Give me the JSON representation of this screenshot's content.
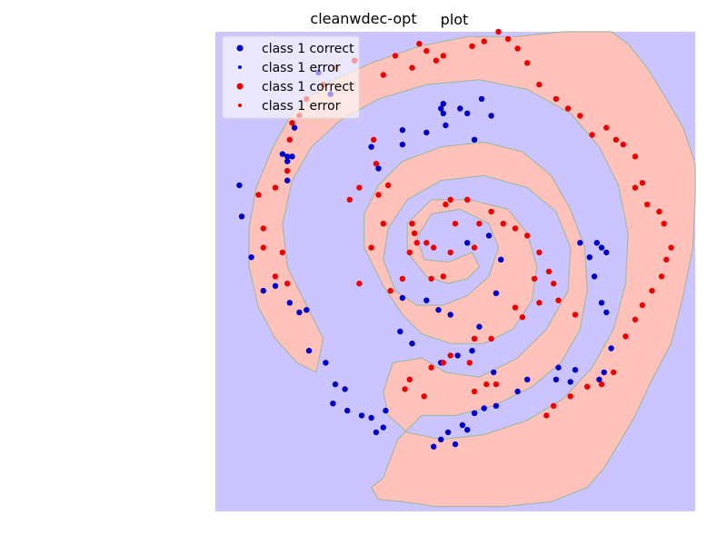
{
  "chart_data": {
    "type": "scatter",
    "title_left": "cleanwdec-opt",
    "title_right": "plot",
    "xlim": [
      -1,
      1
    ],
    "ylim": [
      -1,
      1
    ],
    "grid": false,
    "axes_visible": false,
    "legend_position": "top-left",
    "background": "decision-regions",
    "regions": {
      "class_blue_color": "#ccc4ff",
      "class_red_color": "#ffc2bb",
      "boundary_color": "#a3b8a5"
    },
    "legend": [
      {
        "label": "class 1 correct",
        "color": "#0000cc",
        "marker": "large"
      },
      {
        "label": "class 1 error",
        "color": "#0000cc",
        "marker": "small"
      },
      {
        "label": "class 1 correct",
        "color": "#ee0000",
        "marker": "large"
      },
      {
        "label": "class 1 error",
        "color": "#ee0000",
        "marker": "small"
      }
    ],
    "series": [
      {
        "color": "#0000cc",
        "points": [
          [
            0.05,
            0.12
          ],
          [
            0.14,
            0.15
          ],
          [
            0.19,
            0.05
          ],
          [
            0.17,
            -0.09
          ],
          [
            -0.02,
            -0.18
          ],
          [
            0.1,
            -0.23
          ],
          [
            -0.22,
            -0.11
          ],
          [
            -0.12,
            -0.12
          ],
          [
            -0.07,
            -0.16
          ],
          [
            -0.23,
            -0.25
          ],
          [
            -0.18,
            -0.3
          ],
          [
            0.01,
            -0.35
          ],
          [
            0.07,
            -0.33
          ],
          [
            0.08,
            -0.28
          ],
          [
            -0.06,
            -0.38
          ],
          [
            0.16,
            -0.42
          ],
          [
            0.3,
            -0.45
          ],
          [
            0.26,
            -0.5
          ],
          [
            0.17,
            -0.56
          ],
          [
            0.12,
            -0.57
          ],
          [
            0.08,
            -0.59
          ],
          [
            0.03,
            -0.64
          ],
          [
            0.05,
            -0.66
          ],
          [
            -0.03,
            -0.67
          ],
          [
            0.0,
            -0.72
          ],
          [
            -0.06,
            -0.7
          ],
          [
            -0.09,
            -0.73
          ],
          [
            -0.29,
            -0.58
          ],
          [
            -0.35,
            -0.61
          ],
          [
            -0.3,
            -0.65
          ],
          [
            -0.33,
            -0.67
          ],
          [
            -0.39,
            -0.6
          ],
          [
            -0.45,
            -0.58
          ],
          [
            -0.46,
            -0.49
          ],
          [
            -0.51,
            -0.55
          ],
          [
            -0.5,
            -0.47
          ],
          [
            -0.54,
            -0.38
          ],
          [
            -0.61,
            -0.33
          ],
          [
            -0.65,
            -0.17
          ],
          [
            -0.62,
            -0.16
          ],
          [
            -0.69,
            -0.13
          ],
          [
            -0.75,
            -0.06
          ],
          [
            -0.8,
            -0.08
          ],
          [
            -0.85,
            0.06
          ],
          [
            -0.89,
            0.23
          ],
          [
            -0.9,
            0.36
          ],
          [
            -0.7,
            0.38
          ],
          [
            -0.7,
            0.46
          ],
          [
            -0.7,
            0.48
          ],
          [
            -0.68,
            0.48
          ],
          [
            -0.72,
            0.49
          ],
          [
            -0.67,
            0.6
          ],
          [
            -0.52,
            0.74
          ],
          [
            -0.57,
            0.83
          ],
          [
            0.02,
            0.68
          ],
          [
            0.05,
            0.66
          ],
          [
            0.11,
            0.72
          ],
          [
            0.15,
            0.65
          ],
          [
            0.08,
            0.55
          ],
          [
            -0.05,
            0.7
          ],
          [
            -0.06,
            0.68
          ],
          [
            -0.05,
            0.66
          ],
          [
            -0.04,
            0.61
          ],
          [
            -0.12,
            0.58
          ],
          [
            -0.22,
            0.59
          ],
          [
            -0.22,
            0.53
          ],
          [
            -0.32,
            0.43
          ],
          [
            -0.35,
            0.52
          ],
          [
            0.52,
            0.12
          ],
          [
            0.59,
            0.12
          ],
          [
            0.61,
            0.1
          ],
          [
            0.63,
            0.08
          ],
          [
            0.56,
            0.06
          ],
          [
            0.58,
            -0.02
          ],
          [
            0.63,
            -0.17
          ],
          [
            0.61,
            -0.13
          ],
          [
            0.65,
            -0.32
          ],
          [
            0.62,
            -0.42
          ],
          [
            0.6,
            -0.45
          ],
          [
            0.5,
            -0.41
          ],
          [
            0.43,
            -0.4
          ],
          [
            0.42,
            -0.45
          ],
          [
            0.48,
            -0.46
          ]
        ]
      },
      {
        "color": "#ee0000",
        "points": [
          [
            0.0,
            0.2
          ],
          [
            0.1,
            0.2
          ],
          [
            0.2,
            0.2
          ],
          [
            0.25,
            0.18
          ],
          [
            0.3,
            0.15
          ],
          [
            0.35,
            0.08
          ],
          [
            0.39,
            0.0
          ],
          [
            0.41,
            -0.05
          ],
          [
            0.43,
            -0.12
          ],
          [
            0.35,
            -0.13
          ],
          [
            0.28,
            -0.19
          ],
          [
            0.15,
            -0.28
          ],
          [
            0.08,
            -0.28
          ],
          [
            -0.09,
            0.1
          ],
          [
            -0.16,
            0.12
          ],
          [
            -0.18,
            0.2
          ],
          [
            -0.17,
            0.16
          ],
          [
            -0.19,
            0.08
          ],
          [
            -0.22,
            -0.03
          ],
          [
            -0.1,
            -0.03
          ],
          [
            -0.05,
            -0.02
          ],
          [
            -0.12,
            0.12
          ],
          [
            -0.02,
            0.08
          ],
          [
            0.08,
            0.1
          ],
          [
            -0.04,
            0.28
          ],
          [
            -0.02,
            0.3
          ],
          [
            0.05,
            0.3
          ],
          [
            0.15,
            0.25
          ],
          [
            0.33,
            -0.03
          ],
          [
            0.25,
            -0.15
          ],
          [
            0.5,
            -0.18
          ],
          [
            0.06,
            -0.38
          ],
          [
            -0.05,
            -0.38
          ],
          [
            -0.02,
            -0.35
          ],
          [
            -0.1,
            -0.4
          ],
          [
            -0.19,
            -0.45
          ],
          [
            -0.21,
            -0.49
          ],
          [
            -0.13,
            -0.52
          ],
          [
            0.08,
            -0.5
          ],
          [
            0.13,
            -0.47
          ],
          [
            0.17,
            -0.47
          ],
          [
            -0.4,
            -0.05
          ],
          [
            -0.35,
            0.1
          ],
          [
            -0.27,
            -0.08
          ],
          [
            -0.3,
            0.2
          ],
          [
            -0.44,
            0.3
          ],
          [
            -0.4,
            0.35
          ],
          [
            -0.32,
            0.32
          ],
          [
            -0.28,
            0.36
          ],
          [
            -0.34,
            0.55
          ],
          [
            -0.33,
            0.45
          ],
          [
            -0.7,
            -0.05
          ],
          [
            -0.75,
            -0.02
          ],
          [
            -0.72,
            0.08
          ],
          [
            -0.8,
            0.1
          ],
          [
            -0.8,
            0.18
          ],
          [
            -0.82,
            0.32
          ],
          [
            -0.75,
            0.35
          ],
          [
            -0.7,
            0.42
          ],
          [
            -0.69,
            0.55
          ],
          [
            -0.68,
            0.62
          ],
          [
            -0.65,
            0.65
          ],
          [
            -0.62,
            0.72
          ],
          [
            -0.55,
            0.78
          ],
          [
            -0.5,
            0.85
          ],
          [
            -0.42,
            0.88
          ],
          [
            -0.3,
            0.82
          ],
          [
            -0.25,
            0.9
          ],
          [
            -0.18,
            0.85
          ],
          [
            -0.15,
            0.95
          ],
          [
            -0.12,
            0.92
          ],
          [
            -0.08,
            0.88
          ],
          [
            -0.05,
            0.9
          ],
          [
            0.07,
            0.94
          ],
          [
            0.12,
            0.96
          ],
          [
            0.18,
            1.0
          ],
          [
            0.22,
            0.97
          ],
          [
            0.26,
            0.93
          ],
          [
            0.3,
            0.87
          ],
          [
            0.35,
            0.78
          ],
          [
            0.42,
            0.72
          ],
          [
            0.47,
            0.68
          ],
          [
            0.52,
            0.65
          ],
          [
            0.57,
            0.57
          ],
          [
            0.63,
            0.6
          ],
          [
            0.67,
            0.55
          ],
          [
            0.7,
            0.53
          ],
          [
            0.75,
            0.48
          ],
          [
            0.75,
            0.35
          ],
          [
            0.78,
            0.37
          ],
          [
            0.8,
            0.28
          ],
          [
            0.85,
            0.25
          ],
          [
            0.87,
            0.2
          ],
          [
            0.9,
            0.1
          ],
          [
            0.88,
            0.05
          ],
          [
            0.86,
            -0.02
          ],
          [
            0.82,
            -0.08
          ],
          [
            0.78,
            -0.14
          ],
          [
            0.75,
            -0.2
          ],
          [
            0.71,
            -0.27
          ],
          [
            0.66,
            -0.42
          ],
          [
            0.61,
            -0.47
          ],
          [
            0.55,
            -0.48
          ],
          [
            0.48,
            -0.52
          ],
          [
            0.41,
            -0.56
          ],
          [
            0.38,
            -0.6
          ]
        ]
      }
    ]
  }
}
